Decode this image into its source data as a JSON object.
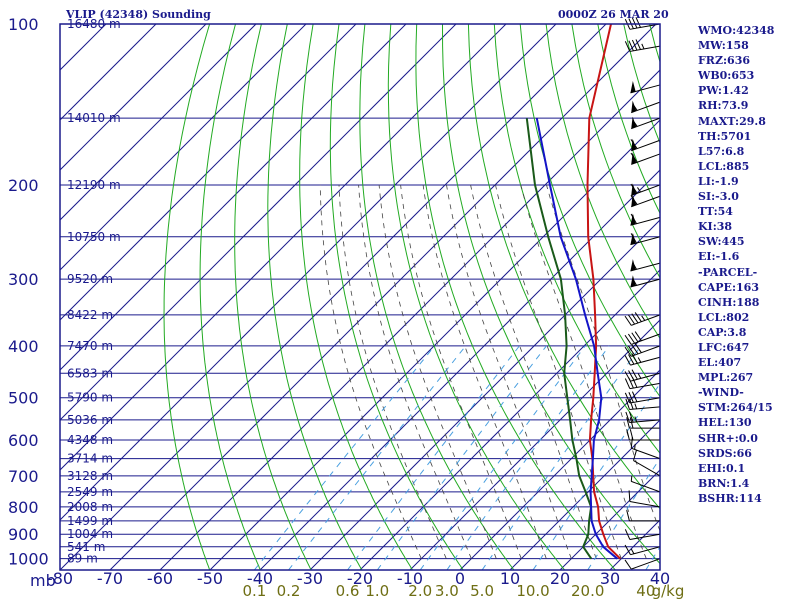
{
  "header": {
    "station_label": "VLIP (42348) Sounding",
    "time_label": "0000Z 26 MAR 20"
  },
  "indices": [
    "WMO:42348",
    "MW:158",
    "FRZ:636",
    "WB0:653",
    "PW:1.42",
    "RH:73.9",
    "MAXT:29.8",
    "TH:5701",
    "L57:6.8",
    "LCL:885",
    "LI:-1.9",
    "SI:-3.0",
    "TT:54",
    "KI:38",
    "SW:445",
    "EI:-1.6",
    "-PARCEL-",
    "CAPE:163",
    "CINH:188",
    "LCL:802",
    "CAP:3.8",
    "LFC:647",
    "EL:407",
    "MPL:267",
    "-WIND-",
    "STM:264/15",
    "HEL:130",
    "SHR+:0.0",
    "SRDS:66",
    "EHI:0.1",
    "BRN:1.4",
    "BSHR:114"
  ],
  "colors": {
    "frame": "#1a1a8c",
    "isotherm": "#1a1a8c",
    "dry_adiabat": "#22aa22",
    "moist_adiabat": "#444444",
    "mixing_ratio": "#4aa0e0",
    "temperature": "#c81414",
    "dewpoint": "#1a5a1a",
    "parcel": "#1414c8",
    "mixing_label": "#6e6e14",
    "wind_barb": "#000000"
  },
  "chart_data": {
    "type": "line",
    "chart_kind": "skew-T log-p",
    "y_axis": {
      "label": "mb",
      "scale": "log",
      "ticks": [
        "100",
        "200",
        "300",
        "400",
        "500",
        "600",
        "700",
        "800",
        "900",
        "1000"
      ],
      "range": [
        100,
        1050
      ]
    },
    "x_axis": {
      "ticks": [
        "-80",
        "-70",
        "-60",
        "-50",
        "-40",
        "-30",
        "-20",
        "-10",
        "0",
        "10",
        "20",
        "30",
        "40"
      ],
      "range": [
        -80,
        40
      ]
    },
    "height_labels": [
      {
        "p": 100,
        "text": "16480 m"
      },
      {
        "p": 150,
        "text": "14010 m"
      },
      {
        "p": 200,
        "text": "12190 m"
      },
      {
        "p": 250,
        "text": "10750 m"
      },
      {
        "p": 300,
        "text": "9520 m"
      },
      {
        "p": 350,
        "text": "8422 m"
      },
      {
        "p": 400,
        "text": "7470 m"
      },
      {
        "p": 450,
        "text": "6583 m"
      },
      {
        "p": 500,
        "text": "5790 m"
      },
      {
        "p": 550,
        "text": "5036 m"
      },
      {
        "p": 600,
        "text": "4348 m"
      },
      {
        "p": 650,
        "text": "3714 m"
      },
      {
        "p": 700,
        "text": "3128 m"
      },
      {
        "p": 750,
        "text": "2549 m"
      },
      {
        "p": 800,
        "text": "2008 m"
      },
      {
        "p": 850,
        "text": "1499 m"
      },
      {
        "p": 900,
        "text": "1004 m"
      },
      {
        "p": 950,
        "text": "541 m"
      },
      {
        "p": 1000,
        "text": "89 m"
      }
    ],
    "mixing_ratio_labels": [
      "0.1",
      "0.2",
      "0.6",
      "1.0",
      "2.0",
      "3.0",
      "5.0",
      "10.0",
      "20.0",
      "40",
      "g/kg"
    ],
    "mixing_ratio_values": [
      0.1,
      0.2,
      0.6,
      1.0,
      2.0,
      3.0,
      5.0,
      10.0,
      20.0,
      40
    ],
    "series": [
      {
        "key": "temperature",
        "points": [
          {
            "p": 1000,
            "t": 29.8
          },
          {
            "p": 950,
            "t": 25.0
          },
          {
            "p": 900,
            "t": 21.5
          },
          {
            "p": 850,
            "t": 18.0
          },
          {
            "p": 800,
            "t": 15.0
          },
          {
            "p": 750,
            "t": 11.2
          },
          {
            "p": 700,
            "t": 7.8
          },
          {
            "p": 650,
            "t": 4.2
          },
          {
            "p": 600,
            "t": 0.0
          },
          {
            "p": 550,
            "t": -3.8
          },
          {
            "p": 500,
            "t": -7.8
          },
          {
            "p": 450,
            "t": -12.4
          },
          {
            "p": 400,
            "t": -17.6
          },
          {
            "p": 350,
            "t": -24.0
          },
          {
            "p": 300,
            "t": -31.5
          },
          {
            "p": 250,
            "t": -41.0
          },
          {
            "p": 200,
            "t": -51.5
          },
          {
            "p": 150,
            "t": -64.5
          },
          {
            "p": 100,
            "t": -79.0
          }
        ]
      },
      {
        "key": "dewpoint",
        "points": [
          {
            "p": 1000,
            "t": 24.0
          },
          {
            "p": 950,
            "t": 20.0
          },
          {
            "p": 900,
            "t": 18.5
          },
          {
            "p": 850,
            "t": 16.0
          },
          {
            "p": 800,
            "t": 13.6
          },
          {
            "p": 750,
            "t": 9.5
          },
          {
            "p": 700,
            "t": 5.0
          },
          {
            "p": 650,
            "t": 1.0
          },
          {
            "p": 600,
            "t": -3.5
          },
          {
            "p": 550,
            "t": -8.0
          },
          {
            "p": 500,
            "t": -13.0
          },
          {
            "p": 450,
            "t": -18.5
          },
          {
            "p": 400,
            "t": -23.5
          },
          {
            "p": 350,
            "t": -30.0
          },
          {
            "p": 300,
            "t": -38.0
          },
          {
            "p": 250,
            "t": -49.0
          },
          {
            "p": 200,
            "t": -62.0
          },
          {
            "p": 150,
            "t": -77.0
          }
        ]
      },
      {
        "key": "parcel",
        "points": [
          {
            "p": 1000,
            "t": 29.2
          },
          {
            "p": 950,
            "t": 24.0
          },
          {
            "p": 900,
            "t": 20.0
          },
          {
            "p": 850,
            "t": 16.5
          },
          {
            "p": 800,
            "t": 13.6
          },
          {
            "p": 750,
            "t": 10.5
          },
          {
            "p": 700,
            "t": 7.5
          },
          {
            "p": 650,
            "t": 4.3
          },
          {
            "p": 600,
            "t": 0.8
          },
          {
            "p": 550,
            "t": -2.2
          },
          {
            "p": 500,
            "t": -6.2
          },
          {
            "p": 450,
            "t": -11.8
          },
          {
            "p": 400,
            "t": -18.0
          },
          {
            "p": 350,
            "t": -26.0
          },
          {
            "p": 300,
            "t": -35.0
          },
          {
            "p": 250,
            "t": -46.5
          },
          {
            "p": 200,
            "t": -59.0
          },
          {
            "p": 150,
            "t": -75.0
          }
        ]
      }
    ],
    "wind_barbs": [
      {
        "p": 1000,
        "dir": 250,
        "spd": 10
      },
      {
        "p": 950,
        "dir": 255,
        "spd": 15
      },
      {
        "p": 900,
        "dir": 260,
        "spd": 10
      },
      {
        "p": 850,
        "dir": 270,
        "spd": 10
      },
      {
        "p": 800,
        "dir": 280,
        "spd": 10
      },
      {
        "p": 750,
        "dir": 290,
        "spd": 5
      },
      {
        "p": 700,
        "dir": 300,
        "spd": 10
      },
      {
        "p": 650,
        "dir": 290,
        "spd": 15
      },
      {
        "p": 600,
        "dir": 270,
        "spd": 20
      },
      {
        "p": 570,
        "dir": 270,
        "spd": 20
      },
      {
        "p": 550,
        "dir": 265,
        "spd": 25
      },
      {
        "p": 520,
        "dir": 265,
        "spd": 25
      },
      {
        "p": 500,
        "dir": 260,
        "spd": 30
      },
      {
        "p": 470,
        "dir": 260,
        "spd": 30
      },
      {
        "p": 450,
        "dir": 255,
        "spd": 35
      },
      {
        "p": 420,
        "dir": 255,
        "spd": 35
      },
      {
        "p": 400,
        "dir": 250,
        "spd": 40
      },
      {
        "p": 380,
        "dir": 250,
        "spd": 40
      },
      {
        "p": 350,
        "dir": 250,
        "spd": 45
      },
      {
        "p": 300,
        "dir": 255,
        "spd": 55
      },
      {
        "p": 280,
        "dir": 255,
        "spd": 55
      },
      {
        "p": 250,
        "dir": 255,
        "spd": 60
      },
      {
        "p": 230,
        "dir": 255,
        "spd": 60
      },
      {
        "p": 210,
        "dir": 250,
        "spd": 60
      },
      {
        "p": 200,
        "dir": 250,
        "spd": 65
      },
      {
        "p": 175,
        "dir": 250,
        "spd": 60
      },
      {
        "p": 165,
        "dir": 250,
        "spd": 60
      },
      {
        "p": 150,
        "dir": 250,
        "spd": 55
      },
      {
        "p": 140,
        "dir": 250,
        "spd": 55
      },
      {
        "p": 130,
        "dir": 255,
        "spd": 50
      },
      {
        "p": 110,
        "dir": 260,
        "spd": 45
      },
      {
        "p": 100,
        "dir": 260,
        "spd": 40
      }
    ]
  }
}
